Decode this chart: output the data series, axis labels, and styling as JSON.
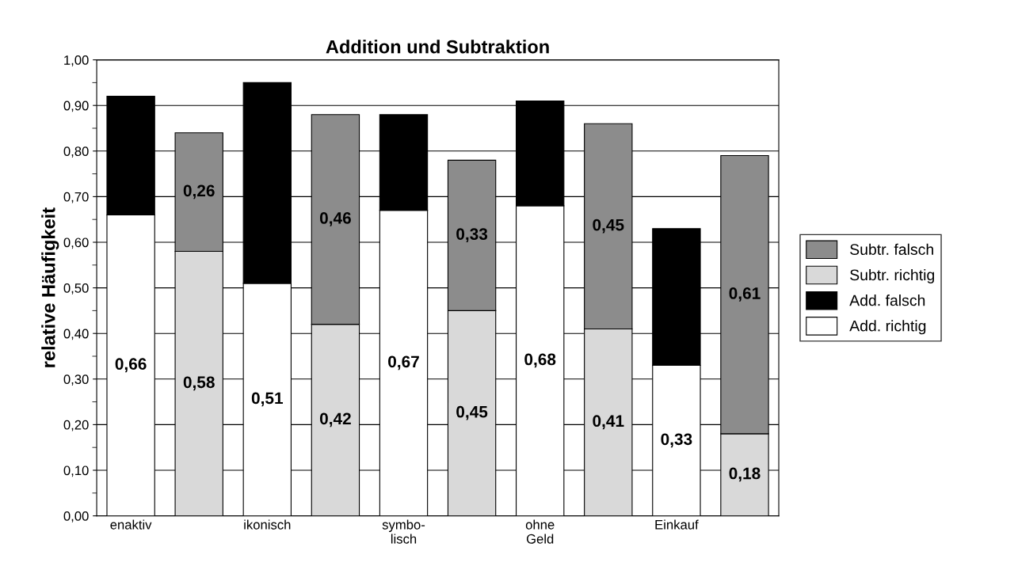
{
  "chart_data": {
    "type": "bar",
    "title": "Addition und Subtraktion",
    "ylabel": "relative Häufigkeit",
    "stacked": true,
    "categories": [
      "enaktiv",
      null,
      "ikonisch",
      null,
      "symbo-\nlisch",
      null,
      "ohne\nGeld",
      null,
      "Einkauf",
      null
    ],
    "series": [
      {
        "name": "Add. richtig",
        "color": "#ffffff",
        "values": [
          0.66,
          null,
          0.51,
          null,
          0.67,
          null,
          0.68,
          null,
          0.33,
          null
        ],
        "value_labels": [
          "0,66",
          null,
          "0,51",
          null,
          "0,67",
          null,
          "0,68",
          null,
          "0,33",
          null
        ]
      },
      {
        "name": "Add. falsch",
        "color": "#000000",
        "values": [
          0.26,
          null,
          0.44,
          null,
          0.21,
          null,
          0.23,
          null,
          0.3,
          null
        ]
      },
      {
        "name": "Subtr. richtig",
        "color": "#d9d9d9",
        "values": [
          null,
          0.58,
          null,
          0.42,
          null,
          0.45,
          null,
          0.41,
          null,
          0.18
        ],
        "value_labels": [
          null,
          "0,58",
          null,
          "0,42",
          null,
          "0,45",
          null,
          "0,41",
          null,
          "0,18"
        ]
      },
      {
        "name": "Subtr. falsch",
        "color": "#8c8c8c",
        "values": [
          null,
          0.26,
          null,
          0.46,
          null,
          0.33,
          null,
          0.45,
          null,
          0.61
        ],
        "value_labels": [
          null,
          "0,26",
          null,
          "0,46",
          null,
          "0,33",
          null,
          "0,45",
          null,
          "0,61"
        ]
      }
    ],
    "ylim": [
      0,
      1
    ],
    "yticks": [
      {
        "value": 0,
        "label": "0,00"
      },
      {
        "value": 0.1,
        "label": "0,10"
      },
      {
        "value": 0.2,
        "label": "0,20"
      },
      {
        "value": 0.3,
        "label": "0,30"
      },
      {
        "value": 0.4,
        "label": "0,40"
      },
      {
        "value": 0.5,
        "label": "0,50"
      },
      {
        "value": 0.6,
        "label": "0,60"
      },
      {
        "value": 0.7,
        "label": "0,70"
      },
      {
        "value": 0.8,
        "label": "0,80"
      },
      {
        "value": 0.9,
        "label": "0,90"
      },
      {
        "value": 1,
        "label": "1,00"
      }
    ],
    "grid": "y",
    "legend": "right"
  }
}
